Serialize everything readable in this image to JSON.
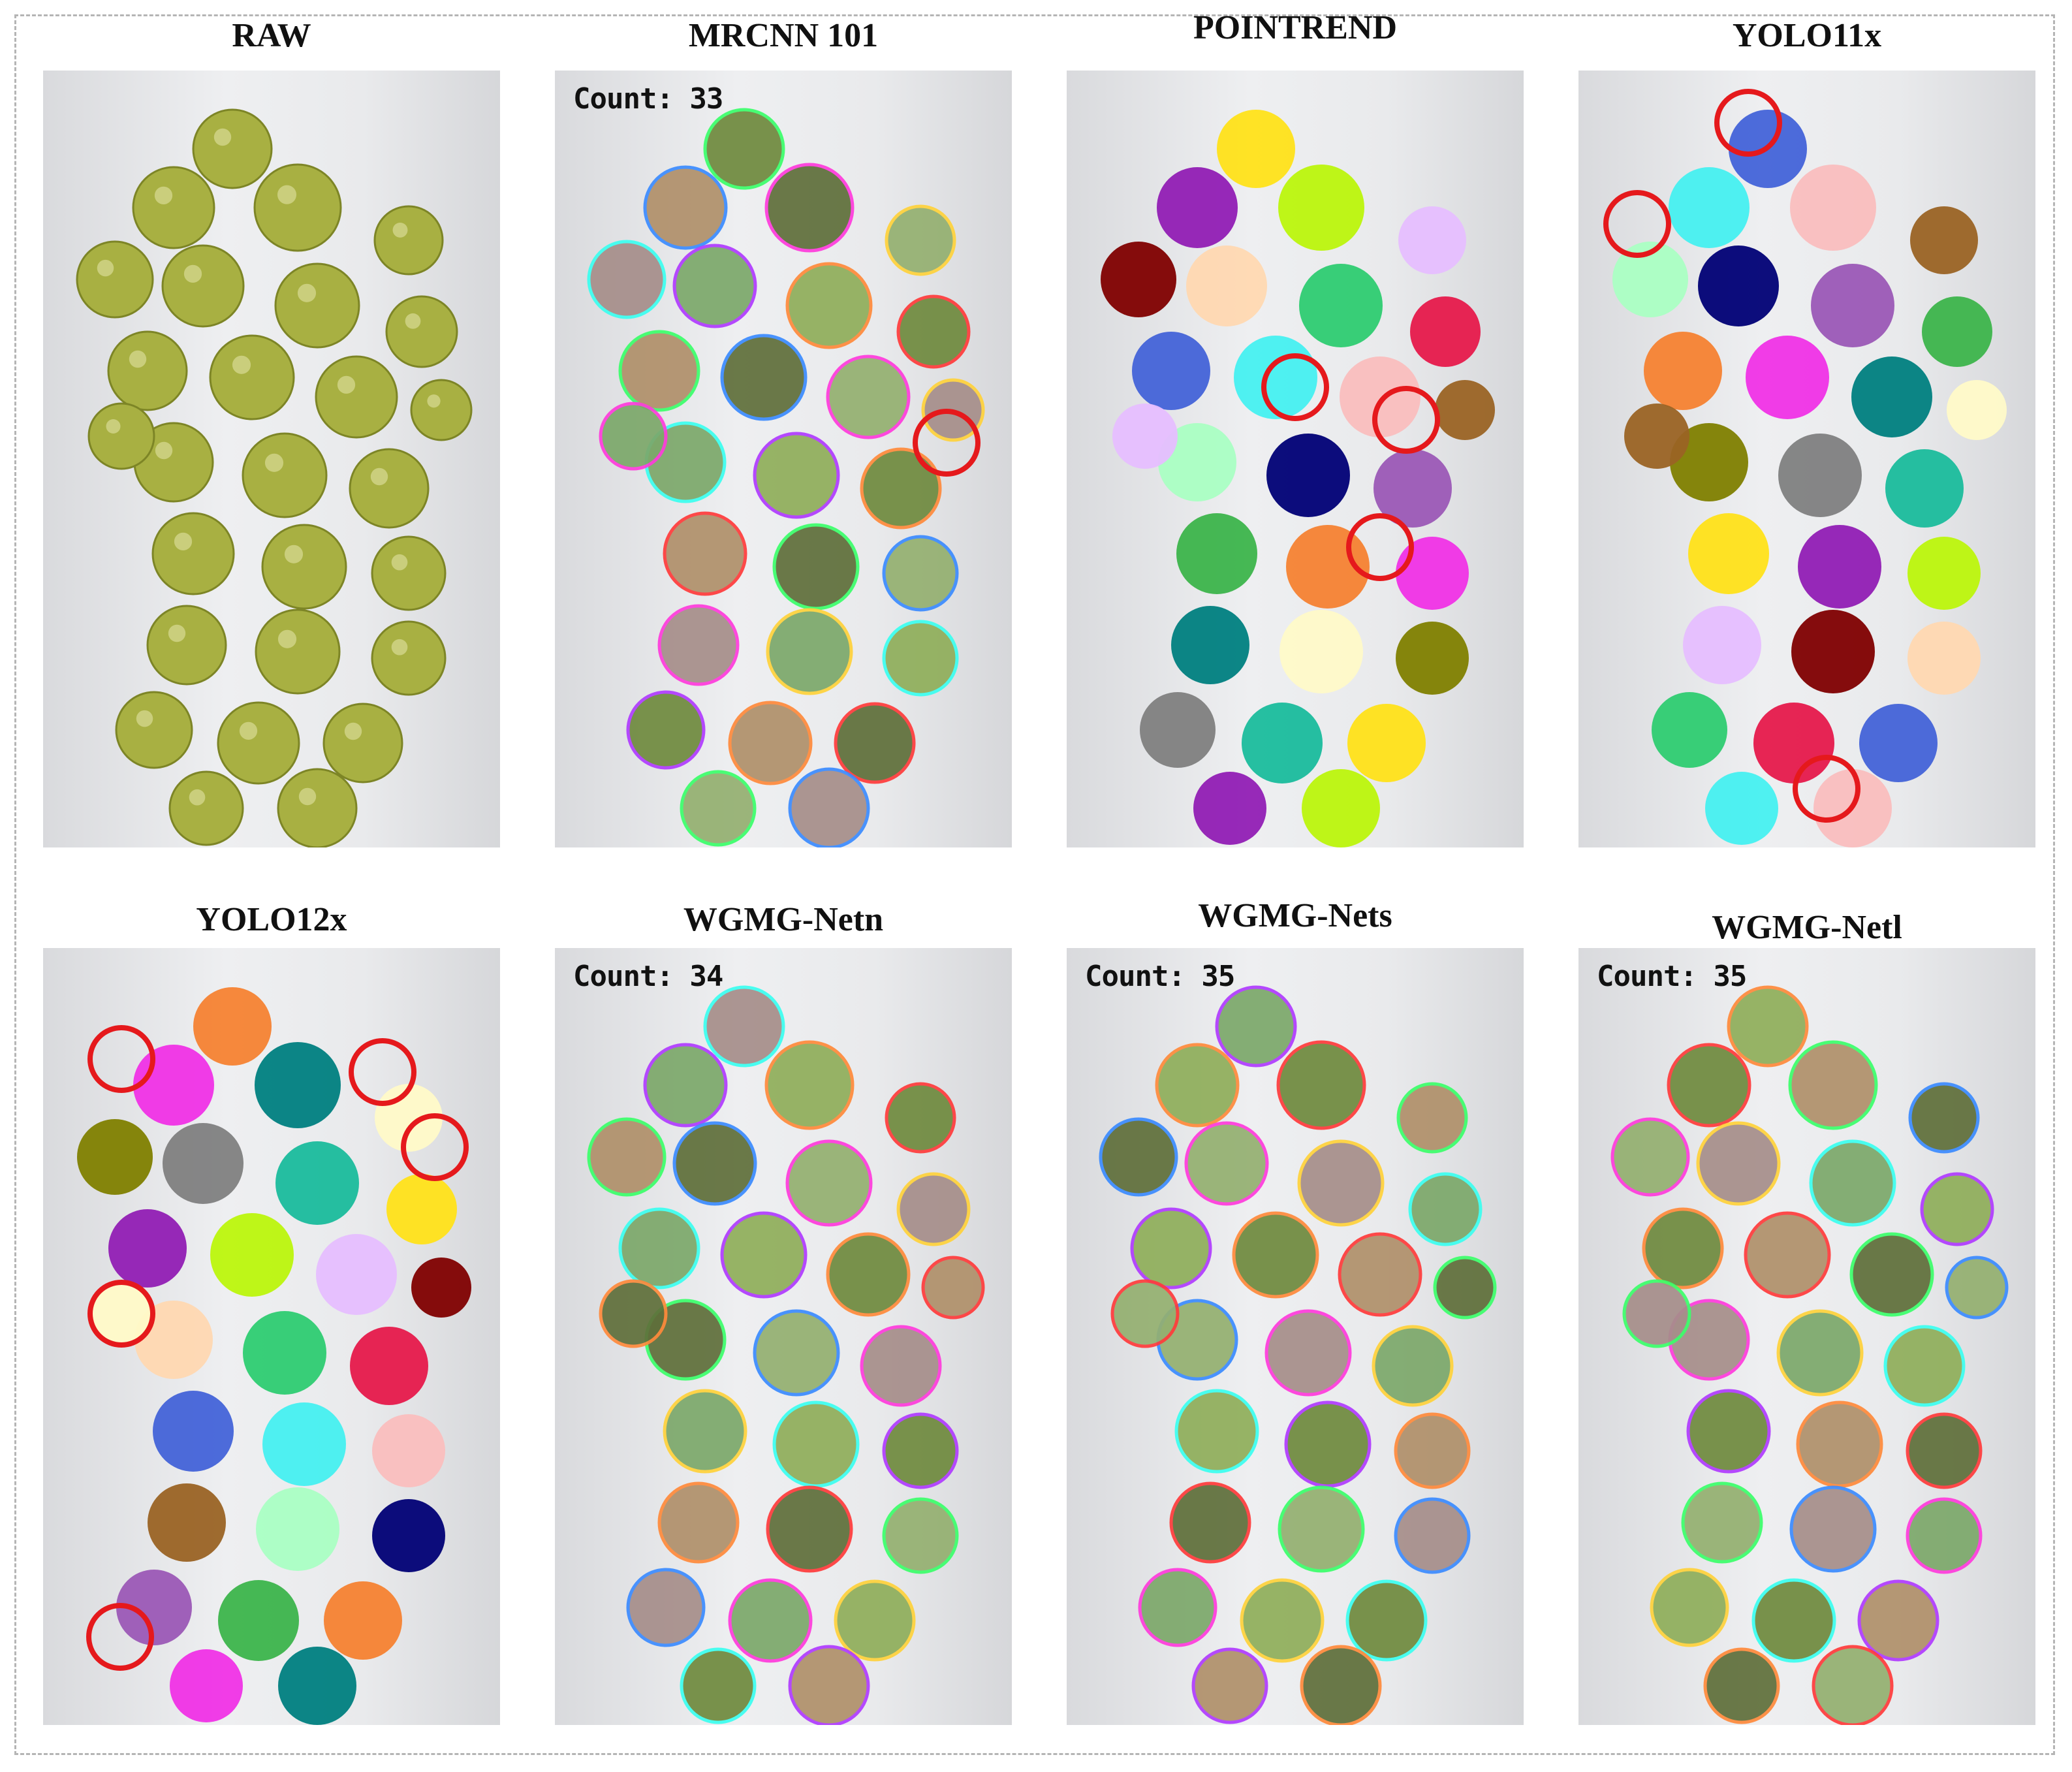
{
  "panels": [
    {
      "id": "raw",
      "title": "RAW",
      "count": null,
      "style": "raw"
    },
    {
      "id": "mrcnn",
      "title": "MRCNN 101",
      "count": "Count: 33",
      "style": "outlined",
      "error_circles": 1
    },
    {
      "id": "pointrend",
      "title": "POINTREND",
      "count": null,
      "style": "solid-blocky",
      "error_circles": 3
    },
    {
      "id": "yolo11x",
      "title": "YOLO11x",
      "count": null,
      "style": "solid",
      "error_circles": 3
    },
    {
      "id": "yolo12x",
      "title": "YOLO12x",
      "count": null,
      "style": "solid",
      "error_circles": 5
    },
    {
      "id": "wgmgn",
      "title": "WGMG-Netn",
      "count": "Count: 34",
      "style": "outlined",
      "error_circles": 0
    },
    {
      "id": "wgmgs",
      "title": "WGMG-Nets",
      "count": "Count: 35",
      "style": "outlined",
      "error_circles": 0
    },
    {
      "id": "wgmgl",
      "title": "WGMG-Netl",
      "count": "Count: 35",
      "style": "outlined",
      "error_circles": 0
    }
  ],
  "colors": {
    "grape_raw": "#a3ac3c",
    "error_circle": "#e5191c",
    "background": "#e6e7e9"
  }
}
